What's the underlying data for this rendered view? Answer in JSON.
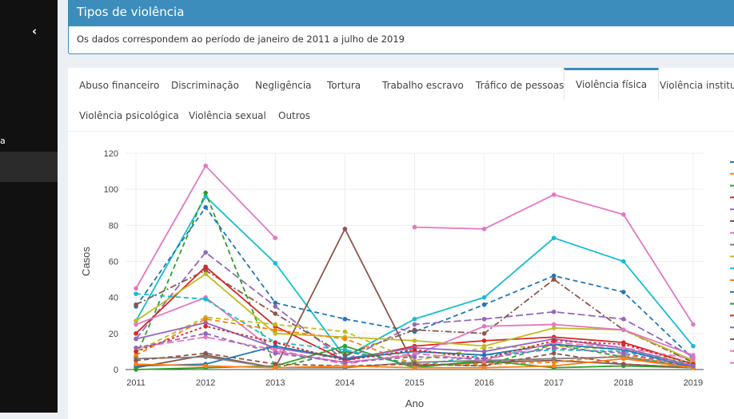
{
  "sidebar": {
    "toggle_icon": "‹",
    "item_fragment": "a"
  },
  "box": {
    "title": "Tipos de violência",
    "text": "Os dados correspondem ao período de janeiro de 2011 a julho de 2019"
  },
  "tabs": [
    {
      "label": "Abuso financeiro"
    },
    {
      "label": "Discriminação"
    },
    {
      "label": "Negligência"
    },
    {
      "label": "Tortura"
    },
    {
      "label": "Trabalho escravo"
    },
    {
      "label": "Tráfico de pessoas"
    },
    {
      "label": "Violência física"
    },
    {
      "label": "Violência institucional"
    },
    {
      "label": "Violência psicológica"
    },
    {
      "label": "Violência sexual"
    },
    {
      "label": "Outros"
    }
  ],
  "active_tab": "Violência física",
  "chart_data": {
    "type": "line",
    "xlabel": "Ano",
    "ylabel": "Casos",
    "x": [
      2011,
      2012,
      2013,
      2014,
      2015,
      2016,
      2017,
      2018,
      2019
    ],
    "xlim": [
      2010.85,
      2019.15
    ],
    "ylim": [
      0,
      120
    ],
    "yticks": [
      0,
      20,
      40,
      60,
      80,
      100,
      120
    ],
    "grid": true,
    "legend_position": "right (cropped)",
    "series": [
      {
        "color": "#e377c2",
        "dash": "solid",
        "values": [
          45,
          113,
          73,
          null,
          79,
          78,
          97,
          86,
          25
        ]
      },
      {
        "color": "#17becf",
        "dash": "solid",
        "values": [
          27,
          96,
          59,
          7,
          28,
          40,
          73,
          60,
          13
        ]
      },
      {
        "color": "#2ca02c",
        "dash": "6,4",
        "values": [
          7,
          98,
          1,
          10,
          3,
          2,
          14,
          7,
          2
        ]
      },
      {
        "color": "#1f77b4",
        "dash": "6,4",
        "values": [
          35,
          90,
          37,
          28,
          21,
          36,
          52,
          43,
          6
        ]
      },
      {
        "color": "#9467bd",
        "dash": "9,4",
        "values": [
          17,
          65,
          35,
          5,
          25,
          28,
          32,
          28,
          7
        ]
      },
      {
        "color": "#8c564b",
        "dash": "8,3,2,3",
        "values": [
          36,
          55,
          31,
          8,
          22,
          20,
          50,
          22,
          4
        ]
      },
      {
        "color": "#d62728",
        "dash": "solid",
        "values": [
          20,
          57,
          24,
          5,
          13,
          16,
          18,
          15,
          3
        ]
      },
      {
        "color": "#bcbd22",
        "dash": "solid",
        "values": [
          27,
          53,
          20,
          18,
          16,
          13,
          23,
          22,
          5
        ]
      },
      {
        "color": "#e377c2",
        "dash": "solid",
        "values": [
          25,
          40,
          10,
          4,
          8,
          24,
          25,
          22,
          8
        ]
      },
      {
        "color": "#17becf",
        "dash": "6,4",
        "values": [
          42,
          39,
          15,
          11,
          2,
          8,
          11,
          10,
          3
        ]
      },
      {
        "color": "#8c564b",
        "dash": "solid",
        "values": [
          1,
          8,
          1,
          78,
          2,
          4,
          5,
          3,
          1
        ]
      },
      {
        "color": "#bcbd22",
        "dash": "6,4",
        "values": [
          10,
          29,
          25,
          21,
          5,
          12,
          13,
          11,
          4
        ]
      },
      {
        "color": "#ff7f0e",
        "dash": "6,4",
        "values": [
          8,
          28,
          22,
          17,
          3,
          3,
          4,
          8,
          2
        ]
      },
      {
        "color": "#9467bd",
        "dash": "solid",
        "values": [
          17,
          26,
          12,
          6,
          12,
          10,
          17,
          12,
          2
        ]
      },
      {
        "color": "#1f77b4",
        "dash": "solid",
        "values": [
          2,
          3,
          13,
          6,
          10,
          8,
          14,
          11,
          1
        ]
      },
      {
        "color": "#2ca02c",
        "dash": "solid",
        "values": [
          0,
          1,
          2,
          13,
          1,
          5,
          1,
          2,
          1
        ]
      },
      {
        "color": "#7f7f7f",
        "dash": "solid",
        "values": [
          6,
          7,
          1,
          1,
          4,
          5,
          6,
          7,
          1
        ]
      },
      {
        "color": "#e377c2",
        "dash": "9,4",
        "values": [
          12,
          18,
          11,
          3,
          9,
          5,
          15,
          12,
          6
        ]
      },
      {
        "color": "#d62728",
        "dash": "3,3",
        "values": [
          10,
          24,
          15,
          5,
          11,
          6,
          16,
          14,
          3
        ]
      },
      {
        "color": "#8c564b",
        "dash": "6,4",
        "values": [
          5,
          9,
          3,
          2,
          3,
          2,
          9,
          3,
          1
        ]
      },
      {
        "color": "#ff7f0e",
        "dash": "solid",
        "values": [
          3,
          2,
          1,
          2,
          1,
          1,
          2,
          6,
          1
        ]
      },
      {
        "color": "#9467bd",
        "dash": "6,4",
        "values": [
          12,
          20,
          9,
          4,
          7,
          6,
          12,
          9,
          2
        ]
      }
    ],
    "legend_swatches": [
      {
        "color": "#1f77b4",
        "dash": "solid"
      },
      {
        "color": "#ff7f0e",
        "dash": "6,4"
      },
      {
        "color": "#2ca02c",
        "dash": "6,4"
      },
      {
        "color": "#d62728",
        "dash": "solid"
      },
      {
        "color": "#9467bd",
        "dash": "6,4"
      },
      {
        "color": "#8c564b",
        "dash": "solid"
      },
      {
        "color": "#e377c2",
        "dash": "solid"
      },
      {
        "color": "#7f7f7f",
        "dash": "solid"
      },
      {
        "color": "#bcbd22",
        "dash": "solid"
      },
      {
        "color": "#17becf",
        "dash": "solid"
      },
      {
        "color": "#ff7f0e",
        "dash": "6,4"
      },
      {
        "color": "#1f77b4",
        "dash": "6,4"
      },
      {
        "color": "#2ca02c",
        "dash": "solid"
      },
      {
        "color": "#d62728",
        "dash": "6,4"
      },
      {
        "color": "#9467bd",
        "dash": "9,4"
      },
      {
        "color": "#8c564b",
        "dash": "solid"
      },
      {
        "color": "#e377c2",
        "dash": "solid"
      },
      {
        "color": "#e377c2",
        "dash": "solid"
      }
    ]
  }
}
